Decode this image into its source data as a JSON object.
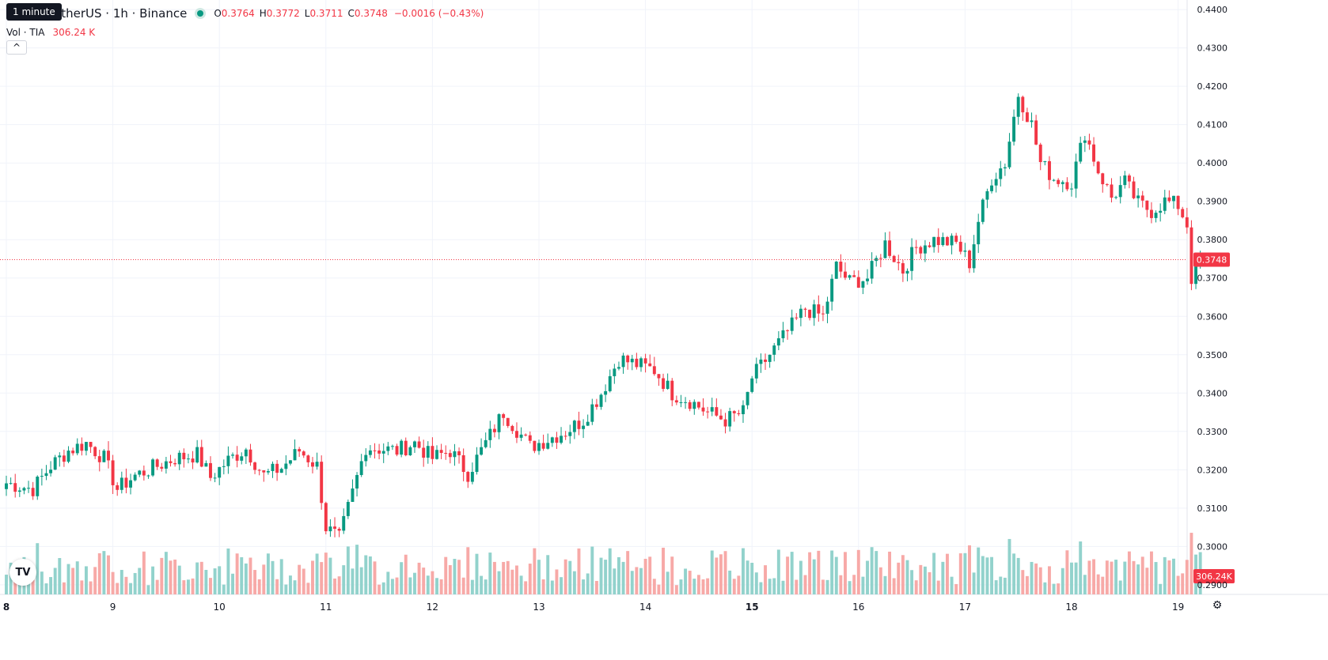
{
  "header": {
    "symbol_title": "etherUS · 1h · Binance",
    "tooltip": "1 minute",
    "ohlc": {
      "o_label": "O",
      "o": "0.3764",
      "h_label": "H",
      "h": "0.3772",
      "l_label": "L",
      "l": "0.3711",
      "c_label": "C",
      "c": "0.3748",
      "change": "−0.0016 (−0.43%)"
    },
    "volume_label": "Vol · TIA",
    "volume_value": "306.24 K",
    "collapse_glyph": "^"
  },
  "colors": {
    "up": "#089981",
    "down": "#f23645",
    "up_volume": "#92d2cc",
    "down_volume": "#f7a9a7",
    "grid": "#f0f3fa",
    "text": "#131722"
  },
  "icons": {
    "logo": "tradingview-logo-icon",
    "settings": "gear-icon"
  },
  "chart_data": {
    "type": "candlestick",
    "timeframe": "1h",
    "x_ticks": [
      "8",
      "9",
      "10",
      "11",
      "12",
      "13",
      "14",
      "15",
      "16",
      "17",
      "18",
      "19"
    ],
    "x_ticks_bold": [
      "8",
      "15"
    ],
    "y_ticks": [
      "0.2900",
      "0.3000",
      "0.3100",
      "0.3200",
      "0.3300",
      "0.3400",
      "0.3500",
      "0.3600",
      "0.3700",
      "0.3800",
      "0.3900",
      "0.4000",
      "0.4100",
      "0.4200",
      "0.4300",
      "0.4400"
    ],
    "ylim": [
      0.2875,
      0.4425
    ],
    "last_price": "0.3748",
    "last_price_value": 0.3748,
    "last_volume_label": "306.24K",
    "start_day": 8,
    "candles_per_day": 24,
    "anchors": [
      [
        0,
        0.3165
      ],
      [
        6,
        0.315
      ],
      [
        10,
        0.321
      ],
      [
        14,
        0.325
      ],
      [
        18,
        0.327
      ],
      [
        22,
        0.323
      ],
      [
        25,
        0.315
      ],
      [
        29,
        0.3185
      ],
      [
        33,
        0.3205
      ],
      [
        38,
        0.323
      ],
      [
        43,
        0.324
      ],
      [
        46,
        0.318
      ],
      [
        50,
        0.3225
      ],
      [
        54,
        0.3255
      ],
      [
        58,
        0.3185
      ],
      [
        62,
        0.3205
      ],
      [
        66,
        0.325
      ],
      [
        70,
        0.321
      ],
      [
        72,
        0.305
      ],
      [
        75,
        0.302
      ],
      [
        78,
        0.314
      ],
      [
        81,
        0.326
      ],
      [
        84,
        0.3255
      ],
      [
        88,
        0.325
      ],
      [
        92,
        0.327
      ],
      [
        96,
        0.323
      ],
      [
        100,
        0.325
      ],
      [
        104,
        0.319
      ],
      [
        108,
        0.327
      ],
      [
        112,
        0.335
      ],
      [
        114,
        0.332
      ],
      [
        118,
        0.326
      ],
      [
        122,
        0.328
      ],
      [
        126,
        0.33
      ],
      [
        130,
        0.333
      ],
      [
        134,
        0.34
      ],
      [
        138,
        0.349
      ],
      [
        142,
        0.3475
      ],
      [
        146,
        0.346
      ],
      [
        150,
        0.34
      ],
      [
        154,
        0.338
      ],
      [
        158,
        0.335
      ],
      [
        162,
        0.333
      ],
      [
        166,
        0.335
      ],
      [
        168,
        0.344
      ],
      [
        172,
        0.35
      ],
      [
        176,
        0.356
      ],
      [
        180,
        0.362
      ],
      [
        184,
        0.36
      ],
      [
        187,
        0.373
      ],
      [
        190,
        0.369
      ],
      [
        194,
        0.37
      ],
      [
        198,
        0.379
      ],
      [
        202,
        0.372
      ],
      [
        205,
        0.378
      ],
      [
        209,
        0.38
      ],
      [
        214,
        0.379
      ],
      [
        217,
        0.374
      ],
      [
        219,
        0.385
      ],
      [
        222,
        0.396
      ],
      [
        225,
        0.4
      ],
      [
        228,
        0.418
      ],
      [
        231,
        0.41
      ],
      [
        233,
        0.4
      ],
      [
        236,
        0.396
      ],
      [
        240,
        0.395
      ],
      [
        243,
        0.408
      ],
      [
        246,
        0.398
      ],
      [
        249,
        0.391
      ],
      [
        252,
        0.395
      ],
      [
        255,
        0.3895
      ],
      [
        258,
        0.3875
      ],
      [
        261,
        0.39
      ],
      [
        264,
        0.389
      ],
      [
        266,
        0.384
      ],
      [
        267,
        0.37
      ],
      [
        269,
        0.3748
      ]
    ],
    "volume_range": [
      0,
      300
    ]
  }
}
